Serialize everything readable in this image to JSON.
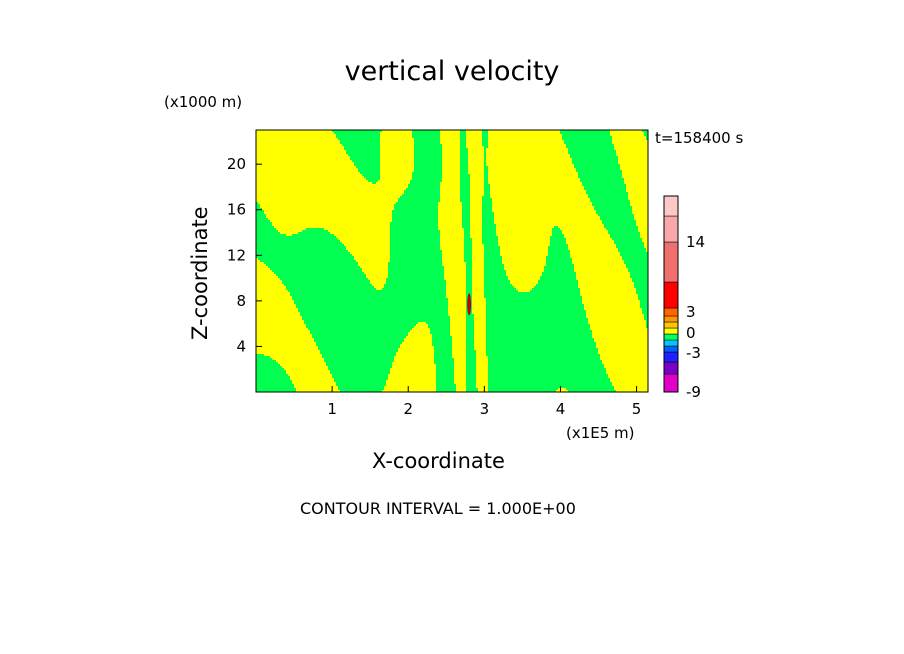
{
  "chart_data": {
    "type": "heatmap",
    "title": "vertical velocity",
    "xlabel": "X-coordinate",
    "ylabel": "Z-coordinate",
    "x_unit": "(x1E5 m)",
    "y_unit": "(x1000 m)",
    "time_label": "t=158400 s",
    "contour_interval_label": "CONTOUR INTERVAL = 1.000E+00",
    "xlim": [
      0,
      5.15
    ],
    "ylim": [
      0,
      23
    ],
    "x_ticks": [
      "1",
      "2",
      "3",
      "4",
      "5"
    ],
    "y_ticks": [
      "4",
      "8",
      "12",
      "16",
      "20"
    ],
    "colorbar": {
      "tick_labels": [
        "14",
        "3",
        "0",
        "-3",
        "-9"
      ],
      "levels_bottom_to_top": [
        {
          "color": "#e000c8"
        },
        {
          "color": "#7800c8"
        },
        {
          "color": "#2020ff"
        },
        {
          "color": "#0060ff"
        },
        {
          "color": "#00c8ff"
        },
        {
          "color": "#00ff64"
        },
        {
          "color": "#ffff00"
        },
        {
          "color": "#ffc800"
        },
        {
          "color": "#ff9600"
        },
        {
          "color": "#ff6400"
        },
        {
          "color": "#ff0000"
        },
        {
          "color": "#f07070"
        },
        {
          "color": "#f8a8a8"
        },
        {
          "color": "#fcc8c8"
        }
      ]
    },
    "field_colors": {
      "negative_small": "#00ff50",
      "positive_small": "#ffff00",
      "peak": "#c80000"
    }
  }
}
